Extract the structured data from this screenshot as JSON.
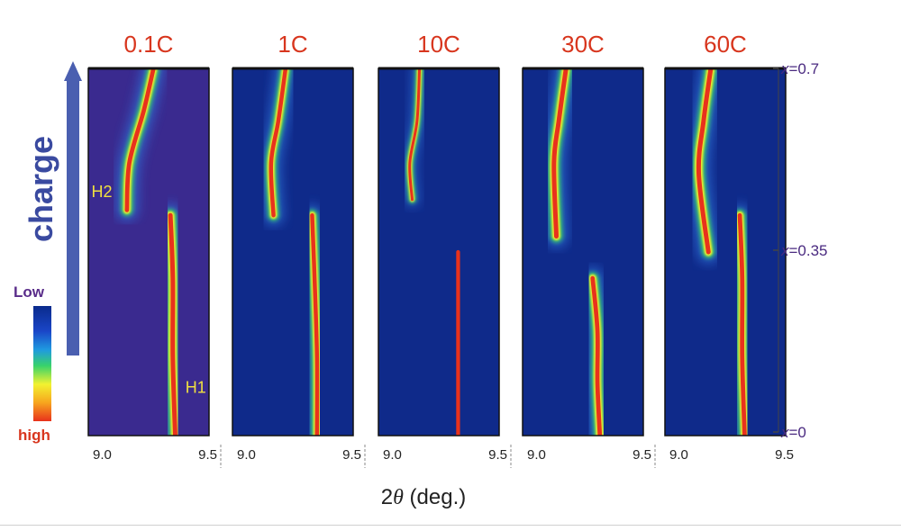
{
  "chart_data": {
    "type": "heatmap",
    "xlabel_prefix": "2",
    "xlabel_symbol": "θ",
    "xlabel_suffix": " (deg.)",
    "xlim": [
      9.0,
      9.5
    ],
    "y_axis_label": "charge",
    "y_ticks": [
      {
        "value": 0.7,
        "var": "x",
        "text": "=0.7"
      },
      {
        "value": 0.35,
        "var": "x",
        "text": "=0.35"
      },
      {
        "value": 0,
        "var": "x",
        "text": "=0"
      }
    ],
    "colorbar": {
      "low_label": "Low",
      "high_label": "high",
      "colors": [
        "#0a2a8c",
        "#1a46c8",
        "#1f9ae0",
        "#38d36a",
        "#f2f230",
        "#f7a51e",
        "#e8321c"
      ]
    },
    "panels": [
      {
        "title": "0.1C",
        "background": "#3a2a8f",
        "tick_left": "9.0",
        "tick_right": "9.5",
        "peaks": [
          {
            "label": "H2",
            "points": [
              [
                9.27,
                0.7
              ],
              [
                9.23,
                0.62
              ],
              [
                9.17,
                0.52
              ],
              [
                9.16,
                0.43
              ]
            ],
            "intensity": 0.95
          },
          {
            "label": "H1",
            "points": [
              [
                9.34,
                0.42
              ],
              [
                9.35,
                0.3
              ],
              [
                9.35,
                0.15
              ],
              [
                9.36,
                0.0
              ]
            ],
            "intensity": 1.0
          }
        ]
      },
      {
        "title": "1C",
        "background": "#0f2a8a",
        "tick_left": "9.0",
        "tick_right": "9.5",
        "peaks": [
          {
            "label": "",
            "points": [
              [
                9.22,
                0.7
              ],
              [
                9.19,
                0.6
              ],
              [
                9.16,
                0.52
              ],
              [
                9.17,
                0.42
              ]
            ],
            "intensity": 0.9
          },
          {
            "label": "",
            "points": [
              [
                9.33,
                0.42
              ],
              [
                9.34,
                0.3
              ],
              [
                9.35,
                0.15
              ],
              [
                9.35,
                0.0
              ]
            ],
            "intensity": 0.9
          }
        ]
      },
      {
        "title": "10C",
        "background": "#0f2a8a",
        "tick_left": "9.0",
        "tick_right": "9.5",
        "peaks": [
          {
            "label": "",
            "points": [
              [
                9.17,
                0.7
              ],
              [
                9.16,
                0.6
              ],
              [
                9.13,
                0.52
              ],
              [
                9.14,
                0.45
              ]
            ],
            "intensity": 0.6
          },
          {
            "label": "",
            "points": [
              [
                9.33,
                0.35
              ],
              [
                9.33,
                0.2
              ],
              [
                9.33,
                0.1
              ],
              [
                9.33,
                0.0
              ]
            ],
            "intensity": 0.85
          }
        ]
      },
      {
        "title": "30C",
        "background": "#0f2a8a",
        "tick_left": "9.0",
        "tick_right": "9.5",
        "peaks": [
          {
            "label": "",
            "points": [
              [
                9.18,
                0.7
              ],
              [
                9.15,
                0.6
              ],
              [
                9.13,
                0.52
              ],
              [
                9.14,
                0.38
              ]
            ],
            "intensity": 1.0
          },
          {
            "label": "",
            "points": [
              [
                9.29,
                0.3
              ],
              [
                9.31,
                0.2
              ],
              [
                9.31,
                0.1
              ],
              [
                9.32,
                0.0
              ]
            ],
            "intensity": 0.95
          }
        ]
      },
      {
        "title": "60C",
        "background": "#0f2a8a",
        "tick_left": "9.0",
        "tick_right": "9.5",
        "peaks": [
          {
            "label": "",
            "points": [
              [
                9.19,
                0.7
              ],
              [
                9.16,
                0.6
              ],
              [
                9.14,
                0.5
              ],
              [
                9.18,
                0.35
              ]
            ],
            "intensity": 1.0
          },
          {
            "label": "",
            "points": [
              [
                9.31,
                0.42
              ],
              [
                9.32,
                0.3
              ],
              [
                9.32,
                0.15
              ],
              [
                9.33,
                0.0
              ]
            ],
            "intensity": 0.95
          }
        ]
      }
    ]
  }
}
